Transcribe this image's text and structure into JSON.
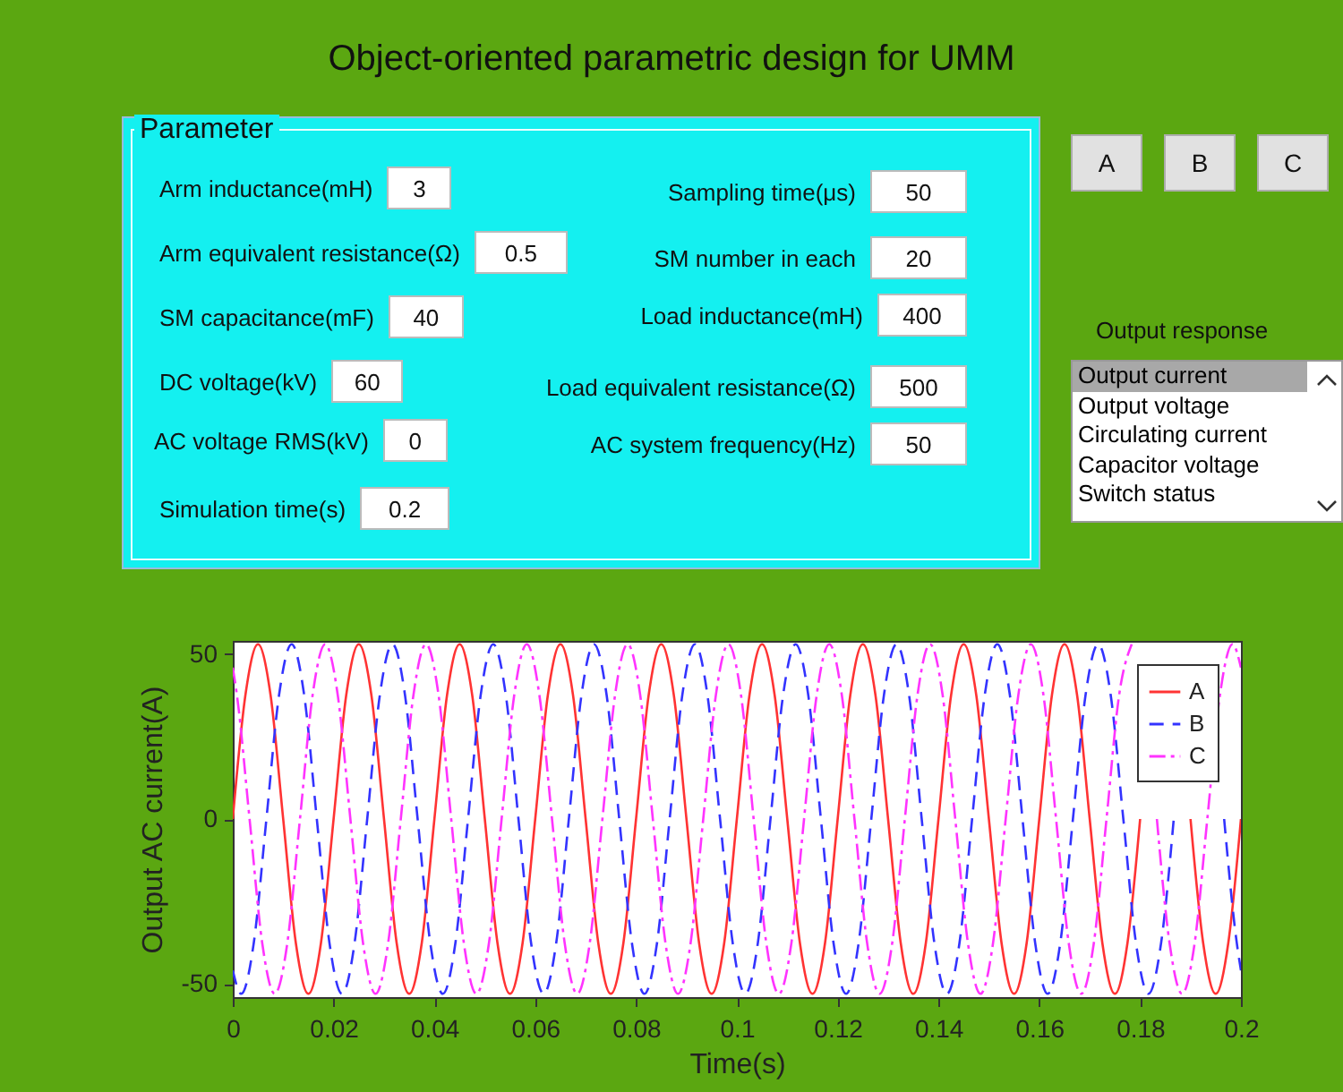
{
  "chart_data": [
    {
      "type": "other",
      "title": "Object-oriented parametric design for UMM",
      "annotations": [
        "Parameter",
        "Arm inductance(mH)",
        "3",
        "Arm equivalent resistance(Ω)",
        "0.5",
        "SM capacitance(mF)",
        "40",
        "DC voltage(kV)",
        "60",
        "AC voltage RMS(kV)",
        "0",
        "Simulation time(s)",
        "0.2",
        "Sampling time(μs)",
        "50",
        "SM number in each",
        "20",
        "Load inductance(mH)",
        "400",
        "Load equivalent resistance(Ω)",
        "500",
        "AC system frequency(Hz)",
        "50",
        "A",
        "B",
        "C",
        "Output response",
        "Output current",
        "Output voltage",
        "Circulating current",
        "Capacitor voltage",
        "Switch status"
      ]
    },
    {
      "type": "line",
      "xlabel": "Time(s)",
      "ylabel": "Output AC current(A)",
      "xlim": [
        0,
        0.2
      ],
      "xticks": [
        0,
        0.02,
        0.04,
        0.06,
        0.08,
        0.1,
        0.12,
        0.14,
        0.16,
        0.18,
        0.2
      ],
      "ylim": [
        -54,
        54
      ],
      "yticks": [
        -50,
        0,
        50
      ],
      "grid": false,
      "legend": "top right",
      "series": [
        {
          "name": "A",
          "color": "#ff3333",
          "line_style": "solid",
          "x": [
            0,
            0.0025,
            0.005,
            0.0075,
            0.01,
            0.0125,
            0.015,
            0.0175,
            0.02,
            0.0225,
            0.025,
            0.0275,
            0.03,
            0.0325,
            0.035,
            0.0375,
            0.04,
            0.0425,
            0.045,
            0.0475,
            0.05,
            0.0525,
            0.055,
            0.0575,
            0.06,
            0.0625,
            0.065,
            0.0675,
            0.07,
            0.0725,
            0.075,
            0.0775,
            0.08,
            0.0825,
            0.085,
            0.0875,
            0.09,
            0.0925,
            0.095,
            0.0975,
            0.1,
            0.1025,
            0.105,
            0.1075,
            0.11,
            0.1125,
            0.115,
            0.1175,
            0.12,
            0.1225,
            0.125,
            0.1275,
            0.13,
            0.1325,
            0.135,
            0.1375,
            0.14,
            0.1425,
            0.145,
            0.1475,
            0.15,
            0.1525,
            0.155,
            0.1575,
            0.16,
            0.1625,
            0.165,
            0.1675,
            0.17,
            0.1725,
            0.175,
            0.1775,
            0.18,
            0.1825,
            0.185,
            0.1875,
            0.19,
            0.1925,
            0.195,
            0.1975,
            0.2
          ],
          "values": [
            0,
            37.5,
            53,
            37.5,
            0,
            -37.5,
            -53,
            -37.5,
            0,
            37.5,
            53,
            37.5,
            0,
            -37.5,
            -53,
            -37.5,
            0,
            37.5,
            53,
            37.5,
            0,
            -37.5,
            -53,
            -37.5,
            0,
            37.5,
            53,
            37.5,
            0,
            -37.5,
            -53,
            -37.5,
            0,
            37.5,
            53,
            37.5,
            0,
            -37.5,
            -53,
            -37.5,
            0,
            37.5,
            53,
            37.5,
            0,
            -37.5,
            -53,
            -37.5,
            0,
            37.5,
            53,
            37.5,
            0,
            -37.5,
            -53,
            -37.5,
            0,
            37.5,
            53,
            37.5,
            0,
            -37.5,
            -53,
            -37.5,
            0,
            37.5,
            53,
            37.5,
            0,
            -37.5,
            -53,
            -37.5,
            0,
            null,
            null,
            null,
            0,
            -37.5,
            -53,
            -37.5,
            0
          ]
        },
        {
          "name": "B",
          "color": "#3333ff",
          "line_style": "dashed",
          "x": [
            0,
            0.00167,
            0.00417,
            0.00667,
            0.00917,
            0.01167,
            0.01417,
            0.01667,
            0.01917,
            0.02167,
            0.02417,
            0.02667,
            0.02917,
            0.03167,
            0.03417,
            0.03667,
            0.03917,
            0.04167,
            0.04417,
            0.04667,
            0.04917,
            0.05167,
            0.05417,
            0.05667,
            0.05917,
            0.06167,
            0.06417,
            0.06667,
            0.06917,
            0.07167,
            0.07417,
            0.07667,
            0.07917,
            0.08167,
            0.08417,
            0.08667,
            0.08917,
            0.09167,
            0.09417,
            0.09667,
            0.09917,
            0.10167,
            0.10417,
            0.10667,
            0.10917,
            0.11167,
            0.11417,
            0.11667,
            0.11917,
            0.12167,
            0.12417,
            0.12667,
            0.12917,
            0.13167,
            0.13417,
            0.13667,
            0.13917,
            0.14167,
            0.14417,
            0.14667,
            0.14917,
            0.15167,
            0.15417,
            0.15667,
            0.15917,
            0.16167,
            0.16417,
            0.16667,
            0.16917,
            0.17167,
            0.17417,
            0.17667,
            0.17917,
            0.18167,
            0.18417,
            0.18667,
            0.18917,
            0.19167,
            0.19417,
            0.19667,
            0.19917,
            0.2
          ],
          "values": [
            -45.9,
            -53,
            -37.5,
            0,
            37.5,
            53,
            37.5,
            0,
            -37.5,
            -53,
            -37.5,
            0,
            37.5,
            53,
            37.5,
            0,
            -37.5,
            -53,
            -37.5,
            0,
            37.5,
            53,
            37.5,
            0,
            -37.5,
            -53,
            -37.5,
            0,
            37.5,
            53,
            37.5,
            0,
            -37.5,
            -53,
            -37.5,
            0,
            37.5,
            53,
            37.5,
            0,
            -37.5,
            -53,
            -37.5,
            0,
            37.5,
            53,
            37.5,
            0,
            -37.5,
            -53,
            -37.5,
            0,
            37.5,
            53,
            37.5,
            0,
            -37.5,
            -53,
            -37.5,
            0,
            37.5,
            53,
            37.5,
            0,
            -37.5,
            -53,
            -37.5,
            0,
            37.5,
            53,
            37.5,
            0,
            -37.5,
            -53,
            -37.5,
            0,
            null,
            null,
            null,
            0,
            -37.5,
            -45.9
          ]
        },
        {
          "name": "C",
          "color": "#ff33ff",
          "line_style": "dashdot",
          "x": [
            0,
            0.00083,
            0.00333,
            0.00583,
            0.00833,
            0.01083,
            0.01333,
            0.01583,
            0.01833,
            0.02083,
            0.02333,
            0.02583,
            0.02833,
            0.03083,
            0.03333,
            0.03583,
            0.03833,
            0.04083,
            0.04333,
            0.04583,
            0.04833,
            0.05083,
            0.05333,
            0.05583,
            0.05833,
            0.06083,
            0.06333,
            0.06583,
            0.06833,
            0.07083,
            0.07333,
            0.07583,
            0.07833,
            0.08083,
            0.08333,
            0.08583,
            0.08833,
            0.09083,
            0.09333,
            0.09583,
            0.09833,
            0.10083,
            0.10333,
            0.10583,
            0.10833,
            0.11083,
            0.11333,
            0.11583,
            0.11833,
            0.12083,
            0.12333,
            0.12583,
            0.12833,
            0.13083,
            0.13333,
            0.13583,
            0.13833,
            0.14083,
            0.14333,
            0.14583,
            0.14833,
            0.15083,
            0.15333,
            0.15583,
            0.15833,
            0.16083,
            0.16333,
            0.16583,
            0.16833,
            0.17083,
            0.17333,
            0.17583,
            0.17833,
            0.18083,
            0.18333,
            0.18583,
            0.18833,
            0.19083,
            0.19333,
            0.19583,
            0.19833,
            0.2
          ],
          "values": [
            45.9,
            37.5,
            0,
            -37.5,
            -53,
            -37.5,
            0,
            37.5,
            53,
            37.5,
            0,
            -37.5,
            -53,
            -37.5,
            0,
            37.5,
            53,
            37.5,
            0,
            -37.5,
            -53,
            -37.5,
            0,
            37.5,
            53,
            37.5,
            0,
            -37.5,
            -53,
            -37.5,
            0,
            37.5,
            53,
            37.5,
            0,
            -37.5,
            -53,
            -37.5,
            0,
            37.5,
            53,
            37.5,
            0,
            -37.5,
            -53,
            -37.5,
            0,
            37.5,
            53,
            37.5,
            0,
            -37.5,
            -53,
            -37.5,
            0,
            37.5,
            53,
            37.5,
            0,
            -37.5,
            -53,
            -37.5,
            0,
            37.5,
            53,
            37.5,
            0,
            -37.5,
            -53,
            -37.5,
            0,
            37.5,
            53,
            null,
            0,
            -37.5,
            -53,
            -37.5,
            0,
            37.5,
            53,
            45.9
          ]
        }
      ]
    }
  ]
}
